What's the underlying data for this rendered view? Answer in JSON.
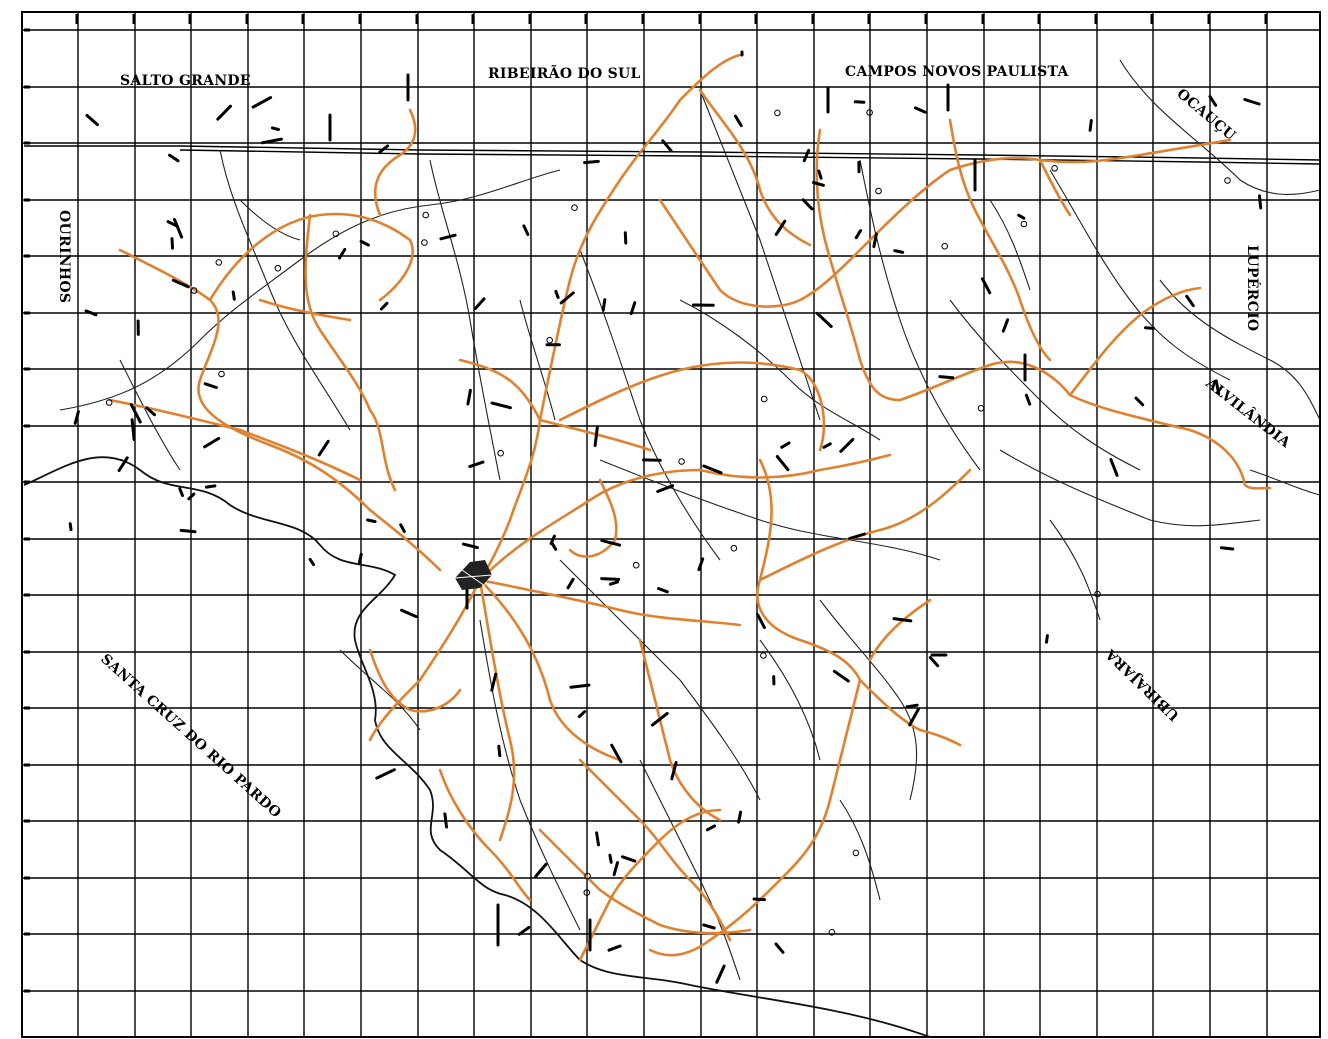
{
  "labels": {
    "salto_grande": "SALTO GRANDE",
    "ribeirao_do_sul": "RIBEIRÃO DO SUL",
    "campos_novos_paulista": "CAMPOS NOVOS PAULISTA",
    "ocaucu": "OCAUÇU",
    "ourinhos": "OURINHOS",
    "lupercio": "LUPÉRCIO",
    "alvilandia": "ALVILÂNDIA",
    "santa_cruz_do_rio_pardo": "SANTA CRUZ DO RIO PARDO",
    "ubirajara": "UBIRAJARA"
  },
  "colors": {
    "road": "#e0812f",
    "grid": "#000000",
    "river": "#222222",
    "background": "#ffffff"
  },
  "legend": {
    "road_icon": "orange-unpaved-road-line",
    "river_icon": "black-river-line",
    "town_icon": "town-hatch-marker"
  }
}
